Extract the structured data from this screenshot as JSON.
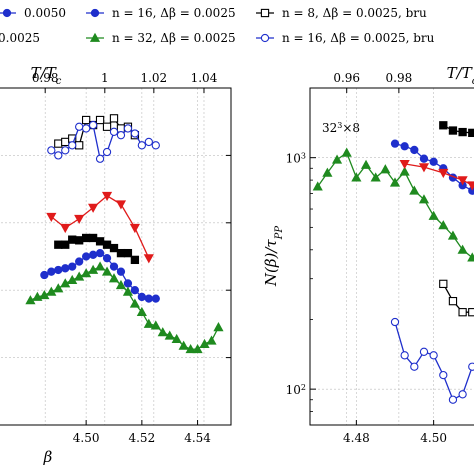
{
  "legend": [
    {
      "text": "0.0050",
      "marker": "circle",
      "color": "#1f2fcc"
    },
    {
      "text": "n = 16, Δβ = 0.0025",
      "marker": "circle",
      "color": "#1f2fcc"
    },
    {
      "text": "n = 8, Δβ = 0.0025, bru",
      "marker": "square-open",
      "color": "#000000"
    },
    {
      "text": "0.0025",
      "marker": "none",
      "color": "#000000"
    },
    {
      "text": "n = 32, Δβ = 0.0025",
      "marker": "triangle",
      "color": "#1f8a1f"
    },
    {
      "text": "n = 16, Δβ = 0.0025, bru",
      "marker": "circle-open",
      "color": "#1f2fcc"
    }
  ],
  "colors": {
    "blue": "#1f2fcc",
    "green": "#1f8a1f",
    "red": "#e01b1b",
    "black": "#000000"
  },
  "chart_data": [
    {
      "type": "scatter",
      "panel": "left",
      "xlabel": "β",
      "top_xlabel": "T/Tc",
      "ylabel": "",
      "xlim": [
        4.468,
        4.552
      ],
      "yscale": "linear",
      "ylim": [
        0,
        1
      ],
      "x_ticks": [
        "4.50",
        "4.52",
        "4.54"
      ],
      "x_tick_values": [
        4.5,
        4.52,
        4.54
      ],
      "x_partial_tick": {
        "label": "4.50",
        "x": 4.5,
        "visible_text": "4.50"
      },
      "top_ticks": [
        "0.98",
        "1",
        "1.02",
        "1.04"
      ],
      "top_tick_values": [
        4.4853,
        4.5067,
        4.5243,
        4.5423
      ],
      "grid": true,
      "series": [
        {
          "color": "#000000",
          "marker": "square-open",
          "line": true,
          "x": [
            4.49,
            4.4925,
            4.495,
            4.4975,
            4.5,
            4.5025,
            4.505,
            4.5075,
            4.51,
            4.5125,
            4.515,
            4.5175
          ],
          "y": [
            0.835,
            0.84,
            0.85,
            0.83,
            0.905,
            0.89,
            0.905,
            0.885,
            0.91,
            0.88,
            0.885,
            0.86
          ]
        },
        {
          "color": "#1f2fcc",
          "marker": "circle-open",
          "line": true,
          "x": [
            4.4875,
            4.49,
            4.4925,
            4.495,
            4.4975,
            4.5,
            4.5025,
            4.505,
            4.5075,
            4.51,
            4.5125,
            4.515,
            4.5175,
            4.52,
            4.5225,
            4.525
          ],
          "y": [
            0.815,
            0.8,
            0.815,
            0.83,
            0.885,
            0.88,
            0.89,
            0.79,
            0.81,
            0.87,
            0.86,
            0.88,
            0.865,
            0.83,
            0.84,
            0.83
          ]
        },
        {
          "color": "#e01b1b",
          "marker": "triangle-down",
          "line": true,
          "x": [
            4.4875,
            4.4925,
            4.4975,
            4.5025,
            4.5075,
            4.5125,
            4.5175,
            4.5225
          ],
          "y": [
            0.618,
            0.585,
            0.612,
            0.645,
            0.68,
            0.655,
            0.585,
            0.495
          ]
        },
        {
          "color": "#000000",
          "marker": "square",
          "line": true,
          "x": [
            4.49,
            4.4925,
            4.495,
            4.4975,
            4.5,
            4.5025,
            4.505,
            4.5075,
            4.51,
            4.5125,
            4.515,
            4.5175
          ],
          "y": [
            0.535,
            0.535,
            0.55,
            0.548,
            0.555,
            0.555,
            0.545,
            0.535,
            0.525,
            0.51,
            0.51,
            0.49
          ]
        },
        {
          "color": "#1f2fcc",
          "marker": "circle",
          "line": true,
          "x": [
            4.485,
            4.4875,
            4.49,
            4.4925,
            4.495,
            4.4975,
            4.5,
            4.5025,
            4.505,
            4.5075,
            4.51,
            4.5125,
            4.515,
            4.5175,
            4.52,
            4.5225,
            4.525
          ],
          "y": [
            0.445,
            0.455,
            0.46,
            0.465,
            0.47,
            0.485,
            0.5,
            0.505,
            0.51,
            0.495,
            0.47,
            0.455,
            0.42,
            0.4,
            0.38,
            0.375,
            0.375
          ]
        },
        {
          "color": "#1f8a1f",
          "marker": "triangle",
          "line": true,
          "x": [
            4.48,
            4.4825,
            4.485,
            4.4875,
            4.49,
            4.4925,
            4.495,
            4.4975,
            4.5,
            4.5025,
            4.505,
            4.5075,
            4.51,
            4.5125,
            4.515,
            4.5175,
            4.52,
            4.5225,
            4.525,
            4.5275,
            4.53,
            4.5325,
            4.535,
            4.5375,
            4.54,
            4.5425,
            4.545,
            4.5475
          ],
          "y": [
            0.37,
            0.38,
            0.385,
            0.395,
            0.405,
            0.42,
            0.43,
            0.44,
            0.45,
            0.46,
            0.47,
            0.455,
            0.435,
            0.415,
            0.395,
            0.36,
            0.335,
            0.3,
            0.295,
            0.275,
            0.265,
            0.255,
            0.235,
            0.225,
            0.225,
            0.24,
            0.25,
            0.29
          ]
        }
      ]
    },
    {
      "type": "scatter",
      "panel": "right",
      "xlabel": "",
      "top_xlabel": "T/Tc",
      "ylabel": "N(β)/τPP",
      "annotation": "32³×8",
      "xlim": [
        4.468,
        4.512
      ],
      "yscale": "log",
      "ylim": [
        70,
        2000
      ],
      "y_ticks": [
        "10²",
        "10³"
      ],
      "y_tick_values": [
        100,
        1000
      ],
      "x_ticks": [
        "4.48",
        "4.50"
      ],
      "x_tick_values": [
        4.48,
        4.5
      ],
      "top_ticks": [
        "0.96",
        "0.98"
      ],
      "top_tick_values": [
        4.4775,
        4.491
      ],
      "grid": true,
      "series": [
        {
          "color": "#1f8a1f",
          "marker": "triangle",
          "line": true,
          "x": [
            4.47,
            4.4725,
            4.475,
            4.4775,
            4.48,
            4.4825,
            4.485,
            4.4875,
            4.49,
            4.4925,
            4.495,
            4.4975,
            4.5,
            4.5025,
            4.505,
            4.5075,
            4.51
          ],
          "y": [
            750,
            860,
            980,
            1050,
            820,
            930,
            820,
            890,
            780,
            870,
            720,
            660,
            560,
            510,
            460,
            400,
            370
          ]
        },
        {
          "color": "#1f2fcc",
          "marker": "circle",
          "line": true,
          "x": [
            4.49,
            4.4925,
            4.495,
            4.4975,
            4.5,
            4.5025,
            4.505,
            4.5075,
            4.51
          ],
          "y": [
            1150,
            1120,
            1080,
            990,
            960,
            900,
            820,
            760,
            720
          ]
        },
        {
          "color": "#e01b1b",
          "marker": "triangle-down",
          "line": true,
          "x": [
            4.4925,
            4.4975,
            4.5025,
            4.5075,
            4.51
          ],
          "y": [
            940,
            910,
            860,
            800,
            760
          ]
        },
        {
          "color": "#000000",
          "marker": "square",
          "line": true,
          "x": [
            4.5025,
            4.505,
            4.5075,
            4.51
          ],
          "y": [
            1380,
            1310,
            1290,
            1280
          ]
        },
        {
          "color": "#000000",
          "marker": "square-open",
          "line": true,
          "x": [
            4.5025,
            4.505,
            4.5075,
            4.51
          ],
          "y": [
            285,
            240,
            215,
            215
          ]
        },
        {
          "color": "#1f2fcc",
          "marker": "circle-open",
          "line": true,
          "x": [
            4.49,
            4.4925,
            4.495,
            4.4975,
            4.5,
            4.5025,
            4.505,
            4.5075,
            4.51
          ],
          "y": [
            195,
            140,
            125,
            145,
            140,
            115,
            90,
            95,
            125
          ]
        }
      ]
    }
  ]
}
